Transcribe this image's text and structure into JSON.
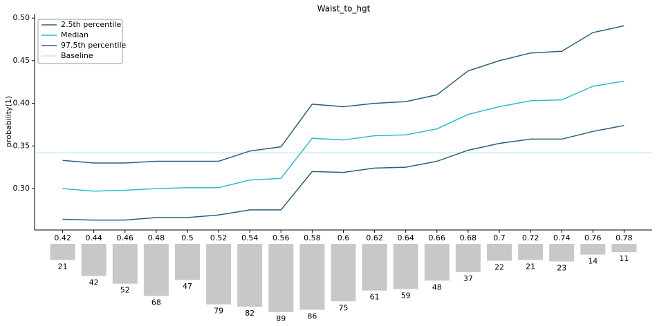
{
  "chart_data": {
    "type": "line",
    "title": "Waist_to_hgt",
    "ylabel": "probability(1)",
    "x": [
      0.42,
      0.44,
      0.46,
      0.48,
      0.5,
      0.52,
      0.54,
      0.56,
      0.58,
      0.6,
      0.62,
      0.64,
      0.66,
      0.68,
      0.7,
      0.72,
      0.74,
      0.76,
      0.78
    ],
    "xlim": [
      0.402,
      0.798
    ],
    "xticks": [
      0.42,
      0.44,
      0.46,
      0.48,
      0.5,
      0.52,
      0.54,
      0.56,
      0.58,
      0.6,
      0.62,
      0.64,
      0.66,
      0.68,
      0.7,
      0.72,
      0.74,
      0.76,
      0.78
    ],
    "ylim": [
      0.2514,
      0.505
    ],
    "yticks": [
      {
        "value": 0.3,
        "label": "0.30"
      },
      {
        "value": 0.35,
        "label": "0.35"
      },
      {
        "value": 0.4,
        "label": "0.40"
      },
      {
        "value": 0.45,
        "label": "0.45"
      },
      {
        "value": 0.5,
        "label": "0.50"
      }
    ],
    "series": [
      {
        "name": "2.5th percentile",
        "color": "#2b5e78",
        "values": [
          0.264,
          0.263,
          0.263,
          0.266,
          0.266,
          0.269,
          0.275,
          0.275,
          0.32,
          0.319,
          0.324,
          0.325,
          0.332,
          0.345,
          0.353,
          0.358,
          0.358,
          0.367,
          0.374
        ]
      },
      {
        "name": "Median",
        "color": "#2bbccf",
        "values": [
          0.3,
          0.297,
          0.298,
          0.3,
          0.301,
          0.301,
          0.31,
          0.312,
          0.359,
          0.357,
          0.362,
          0.363,
          0.37,
          0.387,
          0.396,
          0.403,
          0.404,
          0.42,
          0.426
        ]
      },
      {
        "name": "97.5th percentile",
        "color": "#2b5e78",
        "values": [
          0.333,
          0.33,
          0.33,
          0.332,
          0.332,
          0.332,
          0.344,
          0.349,
          0.399,
          0.396,
          0.4,
          0.402,
          0.41,
          0.438,
          0.45,
          0.459,
          0.461,
          0.483,
          0.491
        ]
      }
    ],
    "baseline": {
      "name": "Baseline",
      "color": "#a6e6ea",
      "value": 0.342
    },
    "legend": "upper left",
    "counts": {
      "color": "#c8c8c8",
      "values": [
        21,
        42,
        52,
        68,
        47,
        79,
        82,
        89,
        86,
        75,
        61,
        59,
        48,
        37,
        22,
        21,
        23,
        14,
        11
      ]
    }
  }
}
